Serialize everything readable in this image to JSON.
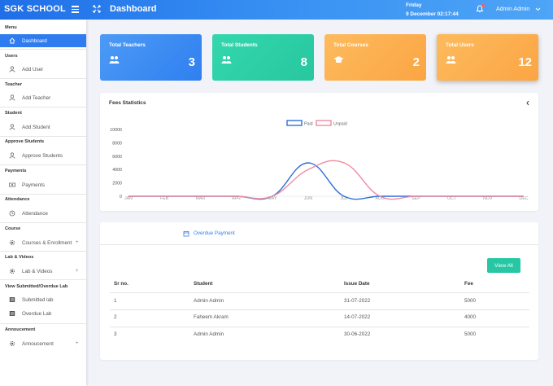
{
  "topbar": {
    "brand": "SGK SCHOOL",
    "title": "Dashboard",
    "day": "Friday",
    "datetime": "9 December 02:17:44",
    "user": "Admin Admin"
  },
  "sidebar": {
    "sections": [
      {
        "title": "Menu",
        "items": [
          {
            "label": "Dashboard",
            "icon": "home-icon",
            "active": true
          }
        ]
      },
      {
        "title": "Users",
        "items": [
          {
            "label": "Add User",
            "icon": "user-icon"
          }
        ]
      },
      {
        "title": "Teacher",
        "items": [
          {
            "label": "Add Teacher",
            "icon": "user-icon"
          }
        ]
      },
      {
        "title": "Student",
        "items": [
          {
            "label": "Add Student",
            "icon": "user-icon"
          }
        ]
      },
      {
        "title": "Approve Students",
        "items": [
          {
            "label": "Approve Students",
            "icon": "user-icon"
          }
        ]
      },
      {
        "title": "Payments",
        "items": [
          {
            "label": "Payments",
            "icon": "money-icon"
          }
        ]
      },
      {
        "title": "Attendance",
        "items": [
          {
            "label": "Attendance",
            "icon": "clock-icon"
          }
        ]
      },
      {
        "title": "Course",
        "items": [
          {
            "label": "Courses & Enrollment",
            "icon": "gear-icon",
            "plus": "+"
          }
        ]
      },
      {
        "title": "Lab & Videos",
        "items": [
          {
            "label": "Lab & Videos",
            "icon": "gear-icon",
            "plus": "+"
          }
        ]
      },
      {
        "title": "View Submitted/Overdue Lab",
        "items": [
          {
            "label": "Submitted lab",
            "icon": "list-icon"
          },
          {
            "label": "Overdue Lab",
            "icon": "list-icon"
          }
        ]
      },
      {
        "title": "Annoucement",
        "items": [
          {
            "label": "Annoucement",
            "icon": "gear-icon",
            "plus": "+"
          }
        ]
      }
    ]
  },
  "cards": [
    {
      "title": "Total Teachers",
      "value": "3",
      "icon": "users-icon",
      "color": "#3d8ef2"
    },
    {
      "title": "Total Students",
      "value": "8",
      "icon": "users-icon",
      "color": "#2fd1a4"
    },
    {
      "title": "Total Courses",
      "value": "2",
      "icon": "graduation-cap-icon",
      "color": "#fdb14f"
    },
    {
      "title": "Total Users",
      "value": "12",
      "icon": "users-icon",
      "color": "#fdb14f"
    }
  ],
  "fees": {
    "title": "Fees Statistics"
  },
  "chart_data": {
    "type": "line",
    "categories": [
      "JAN",
      "FEB",
      "MAR",
      "APR",
      "MAY",
      "JUN",
      "JUL",
      "AUG",
      "SEP",
      "OCT",
      "NOV",
      "DEC"
    ],
    "series": [
      {
        "name": "Paid",
        "color": "#2e6fdc",
        "values": [
          0,
          0,
          0,
          0,
          0,
          5000,
          0,
          0,
          0,
          0,
          0,
          0
        ]
      },
      {
        "name": "Unpaid",
        "color": "#f08aa0",
        "values": [
          0,
          0,
          0,
          0,
          0,
          4000,
          5000,
          0,
          0,
          0,
          0,
          0
        ]
      }
    ],
    "yticks": [
      0,
      2000,
      4000,
      6000,
      8000,
      10000
    ],
    "ylim": [
      0,
      10000
    ],
    "legend": "top-center",
    "grid": false
  },
  "overdue": {
    "tab_label": "Overdue Payment",
    "view_all": "View All",
    "columns": [
      "Sr no.",
      "Student",
      "Issue Date",
      "Fee"
    ],
    "rows": [
      [
        "1",
        "Admin Admin",
        "31-07-2022",
        "5000"
      ],
      [
        "2",
        "Faheem Akram",
        "14-07-2022",
        "4000"
      ],
      [
        "3",
        "Admin Admin",
        "30-06-2022",
        "5000"
      ]
    ]
  }
}
